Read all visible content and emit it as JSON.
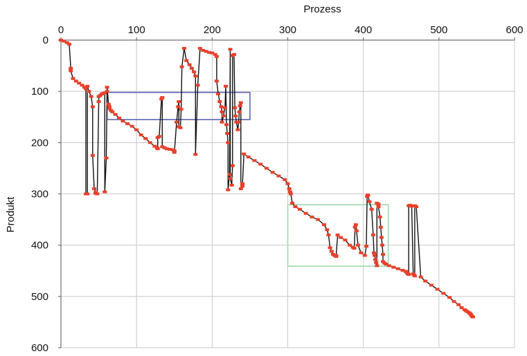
{
  "chart_data": {
    "type": "line",
    "title": "",
    "xlabel": "Prozess",
    "ylabel": "Produkt",
    "x_axis_position": "top",
    "y_axis_inverted": true,
    "xlim": [
      0,
      600
    ],
    "ylim": [
      0,
      600
    ],
    "xticks": [
      0,
      100,
      200,
      300,
      400,
      500,
      600
    ],
    "yticks": [
      0,
      100,
      200,
      300,
      400,
      500,
      600
    ],
    "grid": true,
    "colors": {
      "line": "#111111",
      "marker": "#e8402a",
      "box_blue": "#5a63b8",
      "box_green": "#a6dcb6",
      "grid": "#c8c8c8"
    },
    "series": [
      {
        "x": [
          0,
          4,
          8,
          11,
          13,
          13,
          16,
          20,
          24,
          28,
          31,
          33,
          33,
          35,
          35,
          37,
          40,
          42,
          42,
          44,
          46,
          46,
          48,
          50,
          50,
          52,
          54,
          56,
          58,
          58,
          60,
          61,
          61,
          63,
          64,
          64,
          66,
          68,
          72,
          77,
          82,
          88,
          94,
          100,
          106,
          112,
          118,
          124,
          127,
          128,
          128,
          130,
          133,
          134,
          134,
          137,
          140,
          144,
          148,
          150,
          150,
          153,
          155,
          156,
          156,
          158,
          159,
          160,
          163,
          166,
          170,
          173,
          176,
          178,
          178,
          181,
          184,
          188,
          192,
          196,
          200,
          204,
          206,
          206,
          208,
          210,
          212,
          213,
          213,
          215,
          217,
          218,
          219,
          220,
          221,
          221,
          223,
          224,
          224,
          226,
          227,
          227,
          229,
          230,
          231,
          232,
          234,
          235,
          236,
          237,
          238,
          238,
          240,
          240,
          242,
          248,
          256,
          264,
          272,
          280,
          288,
          296,
          300,
          302,
          303,
          304,
          306,
          310,
          316,
          324,
          332,
          340,
          348,
          352,
          354,
          356,
          358,
          360,
          362,
          364,
          364,
          366,
          370,
          376,
          382,
          386,
          388,
          389,
          390,
          391,
          393,
          397,
          402,
          404,
          405,
          406,
          406,
          408,
          411,
          413,
          414,
          415,
          416,
          417,
          418,
          418,
          420,
          420,
          422,
          423,
          424,
          425,
          426,
          426,
          428,
          430,
          434,
          440,
          446,
          452,
          456,
          457,
          458,
          459,
          460,
          460,
          462,
          464,
          466,
          467,
          468,
          468,
          470,
          476,
          482,
          490,
          498,
          506,
          514,
          520,
          526,
          530,
          534,
          536,
          538,
          540,
          541,
          542,
          543,
          544,
          545
        ],
        "y": [
          0,
          2,
          5,
          8,
          55,
          60,
          75,
          80,
          84,
          88,
          92,
          95,
          300,
          300,
          90,
          100,
          110,
          130,
          225,
          290,
          297,
          299,
          300,
          120,
          110,
          108,
          105,
          104,
          103,
          296,
          230,
          100,
          92,
          125,
          130,
          133,
          137,
          140,
          145,
          152,
          158,
          163,
          168,
          175,
          185,
          192,
          200,
          207,
          210,
          212,
          190,
          188,
          115,
          112,
          208,
          210,
          212,
          213,
          214,
          216,
          219,
          160,
          130,
          120,
          169,
          171,
          135,
          52,
          16,
          40,
          48,
          55,
          62,
          70,
          223,
          88,
          16,
          20,
          22,
          24,
          25,
          28,
          32,
          80,
          105,
          120,
          130,
          140,
          160,
          148,
          132,
          90,
          165,
          182,
          200,
          292,
          262,
          18,
          270,
          283,
          245,
          30,
          28,
          132,
          148,
          160,
          175,
          160,
          140,
          128,
          122,
          290,
          280,
          285,
          222,
          228,
          235,
          242,
          250,
          258,
          265,
          272,
          280,
          290,
          296,
          300,
          318,
          325,
          330,
          338,
          345,
          350,
          360,
          370,
          380,
          405,
          412,
          418,
          420,
          422,
          420,
          380,
          385,
          390,
          400,
          404,
          406,
          365,
          360,
          372,
          400,
          415,
          420,
          402,
          305,
          303,
          302,
          315,
          330,
          380,
          415,
          420,
          428,
          434,
          440,
          318,
          320,
          325,
          345,
          365,
          385,
          400,
          418,
          432,
          435,
          437,
          440,
          443,
          446,
          449,
          451,
          452,
          454,
          456,
          457,
          323,
          322,
          324,
          456,
          458,
          460,
          323,
          325,
          462,
          470,
          478,
          486,
          494,
          502,
          510,
          516,
          522,
          526,
          528,
          530,
          532,
          533,
          535,
          537,
          539,
          540
        ]
      }
    ],
    "annotations": [
      {
        "type": "rectangle",
        "color": "blue",
        "x_range": [
          61,
          250
        ],
        "y_range": [
          102,
          155
        ]
      },
      {
        "type": "rectangle",
        "color": "green",
        "x_range": [
          300,
          433
        ],
        "y_range": [
          321,
          441
        ]
      }
    ]
  }
}
